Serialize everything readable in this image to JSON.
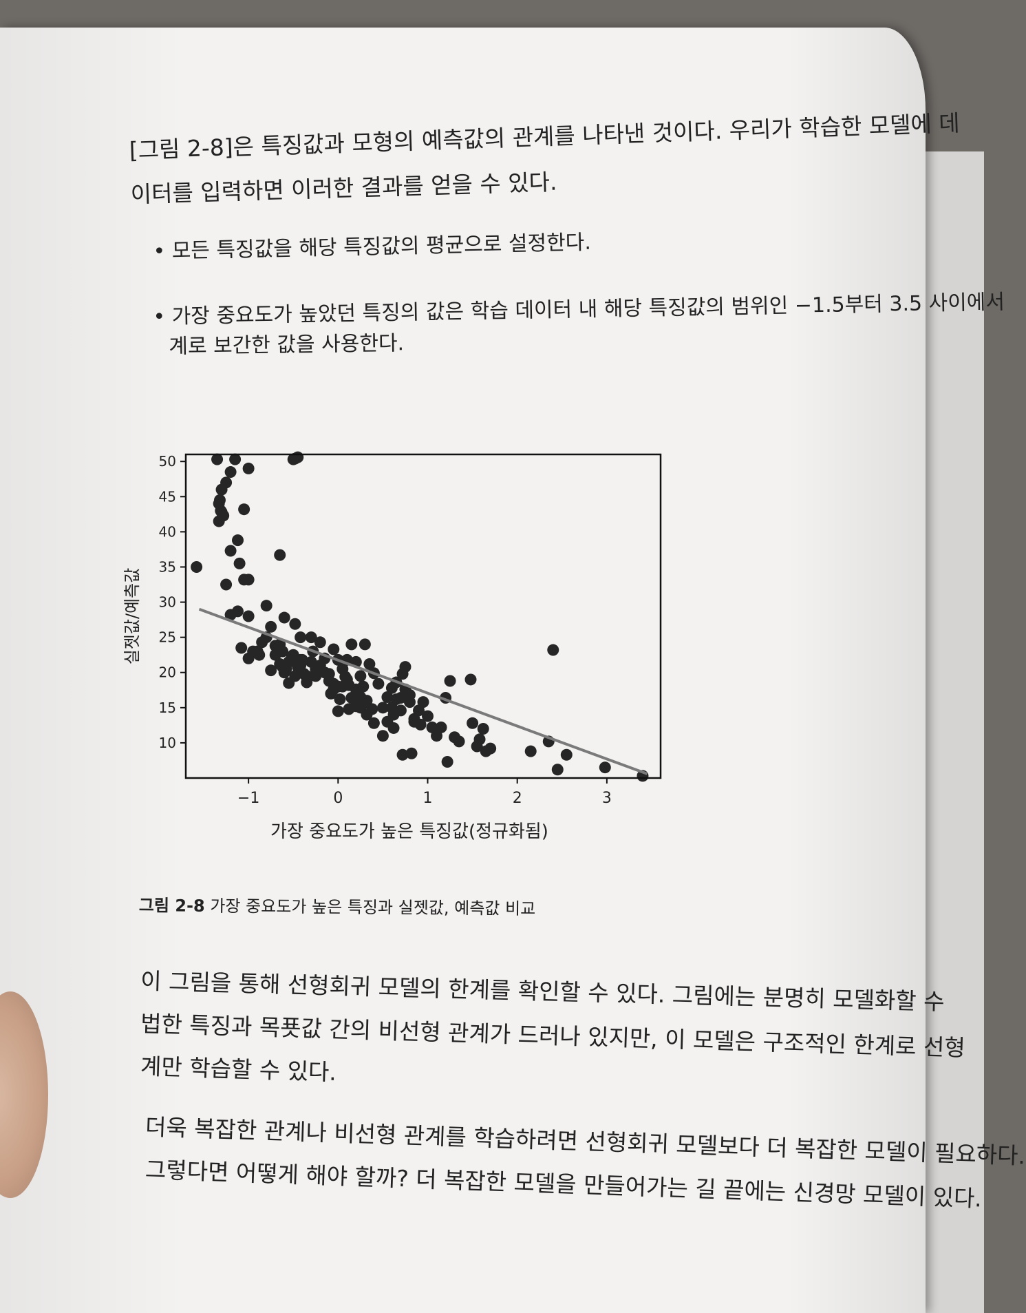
{
  "paragraph_top": {
    "line1": "[그림 2-8]은 특징값과 모형의 예측값의 관계를 나타낸 것이다. 우리가 학습한 모델에 데",
    "line2": "이터를 입력하면 이러한 결과를 얻을 수 있다."
  },
  "bullets": [
    {
      "text": "모든 특징값을 해당 특징값의 평균으로 설정한다."
    },
    {
      "text": "가장 중요도가 높았던 특징의 값은 학습 데이터 내 해당 특징값의 범위인 −1.5부터 3.5 사이에서",
      "text2": "계로 보간한 값을 사용한다."
    }
  ],
  "caption": {
    "label": "그림 2-8",
    "text": " 가장 중요도가 높은 특징과 실젯값, 예측값 비교"
  },
  "paragraph_bottom": {
    "p1_line1": "이 그림을 통해 선형회귀 모델의 한계를 확인할 수 있다. 그림에는 분명히 모델화할 수",
    "p1_line2": "법한 특징과 목푯값 간의 비선형 관계가 드러나 있지만, 이 모델은 구조적인 한계로 선형",
    "p1_line3": "계만 학습할 수 있다.",
    "p2_line1": "더욱 복잡한 관계나 비선형 관계를 학습하려면 선형회귀 모델보다 더 복잡한 모델이 필요하다.",
    "p2_line2": "그렇다면 어떻게 해야 할까? 더 복잡한 모델을 만들어가는 길 끝에는 신경망 모델이 있다."
  },
  "chart_data": {
    "type": "scatter",
    "title": "",
    "xlabel": "가장 중요도가 높은 특징값(정규화됨)",
    "ylabel": "실젯값/예측값",
    "xlim": [
      -1.7,
      3.6
    ],
    "ylim": [
      5,
      51
    ],
    "xticks": [
      -1,
      0,
      1,
      2,
      3
    ],
    "xtick_labels": [
      "−1",
      "0",
      "1",
      "2",
      "3"
    ],
    "yticks": [
      10,
      15,
      20,
      25,
      30,
      35,
      40,
      45,
      50
    ],
    "ytick_labels": [
      "10",
      "15",
      "20",
      "25",
      "30",
      "35",
      "40",
      "45",
      "50"
    ],
    "grid": false,
    "colors": {
      "points": "#262626",
      "line": "#7a7a7a"
    },
    "series": [
      {
        "kind": "points",
        "x": [
          -1.35,
          -1.3,
          -1.32,
          -1.2,
          -1.25,
          -1.31,
          -1.28,
          -1.33,
          -1.3,
          -1.33,
          -1.0,
          -1.15,
          -1.05,
          -0.48,
          -0.45,
          -0.5,
          -1.58,
          -1.2,
          -1.25,
          -1.12,
          -1.0,
          -1.05,
          -1.1,
          -0.65,
          -1.12,
          -1.2,
          -1.0,
          -0.8,
          -0.75,
          -0.6,
          -0.48,
          -0.42,
          -0.3,
          -0.2,
          -0.15,
          -0.05,
          0.0,
          0.1,
          0.15,
          0.2,
          0.3,
          0.25,
          -1.08,
          -1.0,
          -0.95,
          -0.9,
          -0.85,
          -0.8,
          -0.7,
          -0.65,
          -0.62,
          -0.58,
          -0.55,
          -0.5,
          -0.45,
          -0.4,
          -0.35,
          -0.3,
          -0.28,
          -0.25,
          -0.2,
          -0.15,
          -0.1,
          -0.05,
          0.0,
          0.05,
          0.1,
          0.2,
          0.25,
          0.3,
          0.32,
          0.35,
          0.4,
          0.45,
          0.5,
          0.55,
          0.6,
          0.62,
          0.65,
          0.7,
          0.72,
          0.75,
          0.8,
          0.85,
          0.9,
          0.95,
          -0.7,
          -0.65,
          -0.6,
          -0.52,
          -0.48,
          -0.42,
          -0.38,
          -0.35,
          -0.1,
          -0.05,
          0.02,
          0.05,
          0.08,
          0.12,
          0.15,
          0.2,
          0.28,
          0.32,
          0.38,
          0.55,
          0.6,
          0.65,
          0.7,
          0.75,
          0.8,
          0.85,
          0.92,
          1.0,
          1.05,
          1.1,
          1.15,
          1.2,
          1.25,
          1.3,
          1.35,
          1.5,
          1.55,
          1.58,
          1.62,
          1.65,
          1.7,
          -0.88,
          -0.75,
          -0.62,
          -0.55,
          -0.42,
          -0.35,
          -0.25,
          -0.08,
          0.0,
          0.12,
          0.25,
          0.4,
          0.5,
          0.62,
          0.72,
          0.82,
          1.22,
          1.48,
          2.15,
          2.35,
          2.4,
          2.45,
          2.55,
          2.98,
          3.4
        ],
        "y": [
          50.3,
          46,
          44.5,
          48.5,
          47,
          43,
          42.3,
          44,
          42.8,
          41.5,
          49,
          50.3,
          43.2,
          50.4,
          50.6,
          50.3,
          35,
          37.3,
          32.5,
          38.8,
          33.2,
          33.2,
          35.5,
          36.7,
          28.7,
          28.2,
          28,
          29.5,
          26.5,
          27.8,
          26.9,
          25,
          25,
          24.3,
          22,
          23.3,
          21.8,
          21.8,
          24,
          21.5,
          24,
          19.5,
          23.5,
          22,
          23,
          23,
          24.3,
          25,
          23.8,
          24,
          23,
          20.5,
          21.5,
          22.5,
          20.8,
          21.8,
          19.3,
          21.5,
          23,
          19.5,
          21,
          20,
          19.8,
          18.4,
          18,
          18,
          19,
          17.6,
          16.5,
          15.7,
          14,
          21.2,
          19.9,
          18.4,
          15,
          16.5,
          17.8,
          14,
          16.2,
          16.4,
          19.8,
          20.8,
          16.8,
          13,
          14.6,
          15.8,
          22.5,
          21.2,
          20,
          22,
          19.5,
          21,
          19.8,
          18.6,
          18.8,
          17.6,
          16.2,
          20.5,
          19.4,
          18.2,
          16.4,
          15.2,
          18,
          16,
          14.8,
          13,
          15,
          18.6,
          14.6,
          17.6,
          15.8,
          13.4,
          12.6,
          13.8,
          12.2,
          11,
          12.2,
          16.4,
          18.8,
          10.8,
          10.2,
          12.8,
          9.5,
          10.5,
          12,
          8.8,
          9.2,
          22.5,
          20.3,
          20.8,
          18.5,
          21.8,
          19.5,
          20.5,
          17,
          14.5,
          14.8,
          15,
          12.8,
          11,
          12.1,
          8.3,
          8.5,
          7.3,
          19,
          8.8,
          10.2,
          23.2,
          6.2,
          8.3,
          6.5,
          5.3
        ]
      },
      {
        "kind": "line",
        "name": "",
        "x": [
          -1.55,
          3.45
        ],
        "y": [
          29,
          5.6
        ]
      }
    ]
  }
}
